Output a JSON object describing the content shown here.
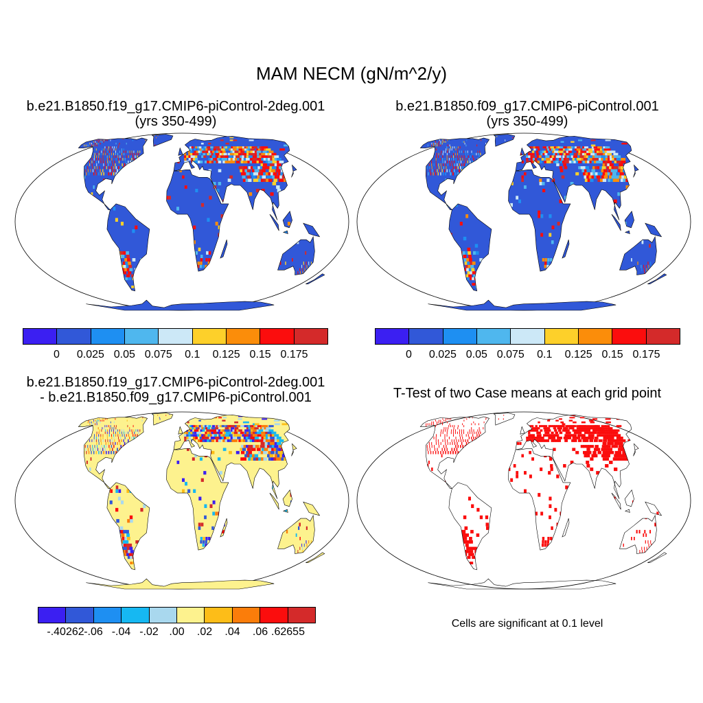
{
  "title": "MAM NECM (gN/m^2/y)",
  "panels": [
    {
      "line1": "b.e21.B1850.f19_g17.CMIP6-piControl-2deg.001",
      "line2": "(yrs 350-499)"
    },
    {
      "line1": "b.e21.B1850.f09_g17.CMIP6-piControl.001",
      "line2": "(yrs 350-499)"
    },
    {
      "line1": "b.e21.B1850.f19_g17.CMIP6-piControl-2deg.001",
      "line2": "- b.e21.B1850.f09_g17.CMIP6-piControl.001"
    },
    {
      "line1": "T-Test of two Case means at each grid point",
      "line2": ""
    }
  ],
  "colorbar_abs": {
    "colors": [
      "#3b1ff2",
      "#3158d8",
      "#1e8ff2",
      "#4fb7ee",
      "#cce8f7",
      "#fdd02a",
      "#fb8d0a",
      "#fb0d0d",
      "#d42a2a"
    ],
    "labels": [
      "0",
      "0.025",
      "0.05",
      "0.075",
      "0.1",
      "0.125",
      "0.15",
      "0.175"
    ]
  },
  "colorbar_diff": {
    "colors": [
      "#3b1ff2",
      "#3158d8",
      "#1e8ff2",
      "#16b8f2",
      "#a9d8ee",
      "#fdf28e",
      "#fdbd18",
      "#fb7d0a",
      "#fb0d0d",
      "#d42a2a"
    ],
    "labels": [
      "-.40262",
      "-.06",
      "-.04",
      "-.02",
      ".00",
      ".02",
      ".04",
      ".06",
      ".62655"
    ]
  },
  "map_colors": {
    "base_abs": "#3158d8",
    "base_diff": "#fdf28e",
    "sig": "#fb0d0d"
  },
  "note": "Cells are significant at 0.1 level"
}
